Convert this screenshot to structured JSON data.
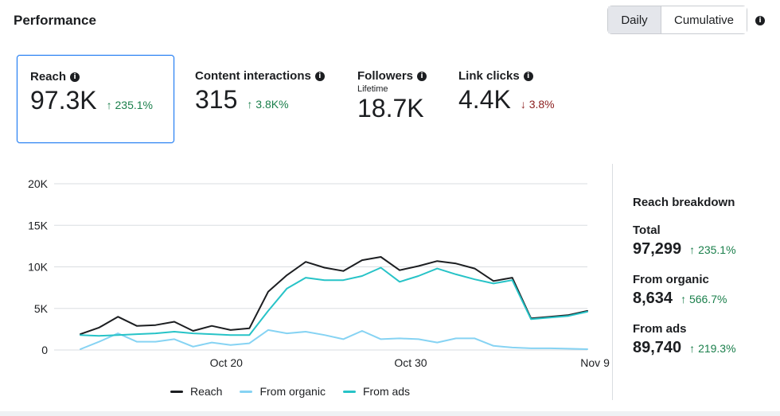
{
  "header": {
    "title": "Performance",
    "toggle": {
      "daily": "Daily",
      "cumulative": "Cumulative"
    }
  },
  "metrics": [
    {
      "label": "Reach",
      "value": "97.3K",
      "change": "235.1%",
      "direction": "up"
    },
    {
      "label": "Content interactions",
      "value": "315",
      "change": "3.8K%",
      "direction": "up"
    },
    {
      "label": "Followers",
      "sub": "Lifetime",
      "value": "18.7K"
    },
    {
      "label": "Link clicks",
      "value": "4.4K",
      "change": "3.8%",
      "direction": "down"
    }
  ],
  "arrows": {
    "up": "↑",
    "down": "↓"
  },
  "colors": {
    "reach": "#1c1e21",
    "organic": "#86d3f3",
    "ads": "#27c3c7",
    "up": "#1a7f4b",
    "down": "#8b1d1d",
    "accent": "#1877f2"
  },
  "chart_data": {
    "type": "line",
    "x_start": "Oct 12",
    "x_end": "Nov 11",
    "x_ticks": [
      "Oct 20",
      "Oct 30",
      "Nov 9"
    ],
    "y_ticks": [
      "0",
      "5K",
      "10K",
      "15K",
      "20K"
    ],
    "ylim": [
      0,
      20000
    ],
    "grid": true,
    "legend_position": "bottom",
    "series": [
      {
        "name": "Reach",
        "color": "#1c1e21",
        "values": [
          1900,
          2700,
          4000,
          2900,
          3000,
          3400,
          2300,
          2900,
          2400,
          2600,
          7000,
          9000,
          10600,
          9900,
          9500,
          10800,
          11200,
          9600,
          10100,
          10700,
          10400,
          9800,
          8300,
          8700,
          3800,
          4000,
          4200,
          4700
        ]
      },
      {
        "name": "From organic",
        "color": "#86d3f3",
        "values": [
          100,
          1000,
          2000,
          1000,
          1000,
          1300,
          400,
          900,
          600,
          800,
          2400,
          2000,
          2200,
          1800,
          1300,
          2300,
          1300,
          1400,
          1300,
          900,
          1400,
          1400,
          500,
          300,
          200,
          200,
          150,
          100
        ]
      },
      {
        "name": "From ads",
        "color": "#27c3c7",
        "values": [
          1800,
          1700,
          1800,
          1900,
          2000,
          2200,
          2000,
          1900,
          1800,
          1800,
          4700,
          7400,
          8700,
          8400,
          8400,
          8900,
          9900,
          8200,
          8900,
          9800,
          9100,
          8500,
          8000,
          8400,
          3700,
          3900,
          4100,
          4600
        ]
      }
    ]
  },
  "breakdown": {
    "title": "Reach breakdown",
    "items": [
      {
        "label": "Total",
        "value": "97,299",
        "change": "235.1%"
      },
      {
        "label": "From organic",
        "value": "8,634",
        "change": "566.7%"
      },
      {
        "label": "From ads",
        "value": "89,740",
        "change": "219.3%"
      }
    ]
  }
}
